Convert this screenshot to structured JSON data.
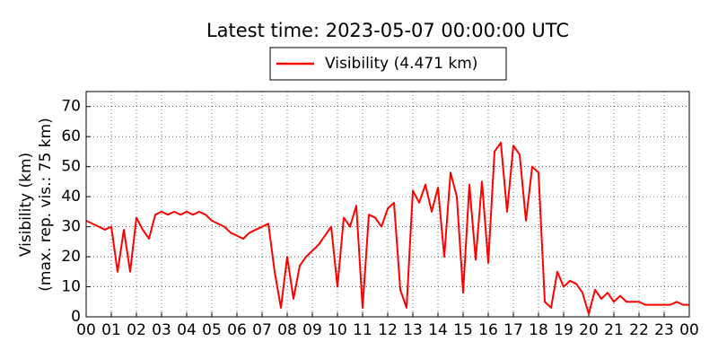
{
  "chart_data": {
    "type": "line",
    "title": "Latest time: 2023-05-07 00:00:00 UTC",
    "y_label": [
      "Visibility (km)",
      "(max. rep. vis.: 75 km)"
    ],
    "legend_position": "top-center",
    "grid": true,
    "xlim": [
      0,
      24
    ],
    "ylim": [
      0,
      75
    ],
    "yticks": [
      0,
      10,
      20,
      30,
      40,
      50,
      60,
      70
    ],
    "xticks": [
      {
        "value": 0,
        "label": "00"
      },
      {
        "value": 1,
        "label": "01"
      },
      {
        "value": 2,
        "label": "02"
      },
      {
        "value": 3,
        "label": "03"
      },
      {
        "value": 4,
        "label": "04"
      },
      {
        "value": 5,
        "label": "05"
      },
      {
        "value": 6,
        "label": "06"
      },
      {
        "value": 7,
        "label": "07"
      },
      {
        "value": 8,
        "label": "08"
      },
      {
        "value": 9,
        "label": "09"
      },
      {
        "value": 10,
        "label": "10"
      },
      {
        "value": 11,
        "label": "11"
      },
      {
        "value": 12,
        "label": "12"
      },
      {
        "value": 13,
        "label": "13"
      },
      {
        "value": 14,
        "label": "14"
      },
      {
        "value": 15,
        "label": "15"
      },
      {
        "value": 16,
        "label": "16"
      },
      {
        "value": 17,
        "label": "17"
      },
      {
        "value": 18,
        "label": "18"
      },
      {
        "value": 19,
        "label": "19"
      },
      {
        "value": 20,
        "label": "20"
      },
      {
        "value": 21,
        "label": "21"
      },
      {
        "value": 22,
        "label": "22"
      },
      {
        "value": 23,
        "label": "23"
      },
      {
        "value": 24,
        "label": "00"
      }
    ],
    "x": [
      0,
      0.25,
      0.5,
      0.75,
      1,
      1.25,
      1.5,
      1.75,
      2,
      2.25,
      2.5,
      2.75,
      3,
      3.25,
      3.5,
      3.75,
      4,
      4.25,
      4.5,
      4.75,
      5,
      5.25,
      5.5,
      5.75,
      6,
      6.25,
      6.5,
      6.75,
      7,
      7.25,
      7.5,
      7.75,
      8,
      8.25,
      8.5,
      8.75,
      9,
      9.25,
      9.5,
      9.75,
      10,
      10.25,
      10.5,
      10.75,
      11,
      11.25,
      11.5,
      11.75,
      12,
      12.25,
      12.5,
      12.75,
      13,
      13.25,
      13.5,
      13.75,
      14,
      14.25,
      14.5,
      14.75,
      15,
      15.25,
      15.5,
      15.75,
      16,
      16.25,
      16.5,
      16.75,
      17,
      17.25,
      17.5,
      17.75,
      18,
      18.25,
      18.5,
      18.75,
      19,
      19.25,
      19.5,
      19.75,
      20,
      20.25,
      20.5,
      20.75,
      21,
      21.25,
      21.5,
      21.75,
      22,
      22.25,
      22.5,
      22.75,
      23,
      23.25,
      23.5,
      23.75,
      24
    ],
    "series": [
      {
        "name": "Visibility (4.471 km)",
        "color": "#ff0000",
        "values": [
          32,
          31,
          30,
          29,
          30,
          15,
          29,
          15,
          33,
          29,
          26,
          34,
          35,
          34,
          35,
          34,
          35,
          34,
          35,
          34,
          32,
          31,
          30,
          28,
          27,
          26,
          28,
          29,
          30,
          31,
          15,
          3,
          20,
          6,
          17,
          20,
          22,
          24,
          27,
          30,
          10,
          33,
          30,
          37,
          3,
          34,
          33,
          30,
          36,
          38,
          9,
          3,
          42,
          38,
          44,
          35,
          43,
          20,
          48,
          40,
          8,
          44,
          19,
          45,
          18,
          55,
          58,
          35,
          57,
          54,
          32,
          50,
          48,
          5,
          3,
          15,
          10,
          12,
          11,
          8,
          1,
          9,
          6,
          8,
          5,
          7,
          5,
          5,
          5,
          4,
          4,
          4,
          4,
          4,
          5,
          4,
          4
        ]
      }
    ]
  }
}
